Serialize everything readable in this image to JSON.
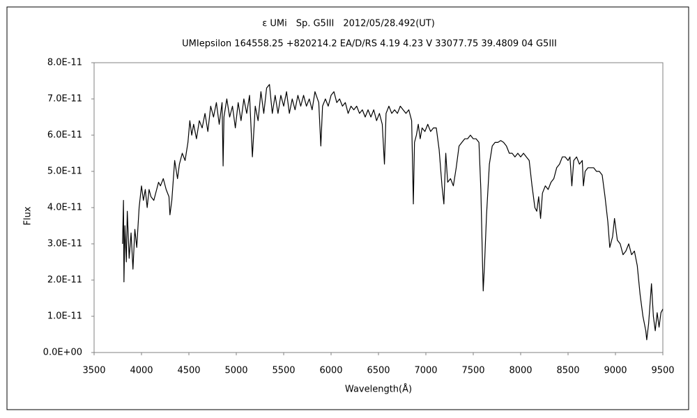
{
  "chart_data": {
    "type": "line",
    "title": "ε UMi　Sp. G5III　2012/05/28.492(UT)",
    "subtitle": "UMIepsilon 164558.25 +820214.2 EA/D/RS 4.19 4.23 V 33077.75 39.4809 04 G5III",
    "x_label": "Wavelength(Å)",
    "y_label": "Flux",
    "color": "#000000",
    "grid": false,
    "xlim": [
      3500,
      9500
    ],
    "xticks": [
      3500,
      4000,
      4500,
      5000,
      5500,
      6000,
      6500,
      7000,
      7500,
      8000,
      8500,
      9000,
      9500
    ],
    "ylim": [
      0,
      8e-11
    ],
    "yticks": [
      {
        "value": 0,
        "label": "0.0E+00"
      },
      {
        "value": 1e-11,
        "label": "1.0E-11"
      },
      {
        "value": 2e-11,
        "label": "2.0E-11"
      },
      {
        "value": 3e-11,
        "label": "3.0E-11"
      },
      {
        "value": 4e-11,
        "label": "4.0E-11"
      },
      {
        "value": 5e-11,
        "label": "5.0E-11"
      },
      {
        "value": 6e-11,
        "label": "6.0E-11"
      },
      {
        "value": 7e-11,
        "label": "7.0E-11"
      },
      {
        "value": 8e-11,
        "label": "8.0E-11"
      }
    ],
    "x": [
      3800,
      3810,
      3815,
      3825,
      3840,
      3850,
      3870,
      3890,
      3910,
      3930,
      3950,
      3975,
      4000,
      4020,
      4040,
      4060,
      4080,
      4100,
      4130,
      4160,
      4180,
      4200,
      4230,
      4260,
      4290,
      4300,
      4320,
      4350,
      4380,
      4400,
      4430,
      4460,
      4490,
      4510,
      4530,
      4550,
      4580,
      4610,
      4640,
      4670,
      4700,
      4730,
      4760,
      4790,
      4820,
      4850,
      4861,
      4870,
      4900,
      4930,
      4960,
      4990,
      5020,
      5050,
      5080,
      5110,
      5140,
      5170,
      5200,
      5230,
      5260,
      5290,
      5320,
      5350,
      5380,
      5410,
      5440,
      5470,
      5500,
      5530,
      5560,
      5590,
      5620,
      5650,
      5680,
      5710,
      5740,
      5770,
      5800,
      5830,
      5870,
      5892,
      5910,
      5940,
      5970,
      6000,
      6030,
      6060,
      6090,
      6120,
      6150,
      6180,
      6210,
      6240,
      6270,
      6300,
      6330,
      6360,
      6390,
      6420,
      6450,
      6480,
      6510,
      6540,
      6563,
      6580,
      6610,
      6640,
      6670,
      6700,
      6730,
      6760,
      6790,
      6820,
      6850,
      6868,
      6880,
      6900,
      6920,
      6940,
      6960,
      6990,
      7020,
      7050,
      7080,
      7110,
      7140,
      7170,
      7190,
      7210,
      7230,
      7260,
      7290,
      7320,
      7350,
      7380,
      7410,
      7440,
      7470,
      7500,
      7530,
      7560,
      7580,
      7600,
      7605,
      7620,
      7640,
      7670,
      7700,
      7730,
      7760,
      7790,
      7820,
      7850,
      7880,
      7910,
      7940,
      7970,
      8000,
      8030,
      8060,
      8090,
      8120,
      8150,
      8170,
      8190,
      8210,
      8230,
      8260,
      8290,
      8320,
      8350,
      8380,
      8410,
      8440,
      8470,
      8500,
      8520,
      8540,
      8560,
      8590,
      8620,
      8650,
      8662,
      8680,
      8710,
      8740,
      8770,
      8800,
      8830,
      8860,
      8890,
      8920,
      8940,
      8970,
      8990,
      9020,
      9050,
      9080,
      9110,
      9140,
      9170,
      9200,
      9230,
      9260,
      9290,
      9320,
      9330,
      9350,
      9380,
      9400,
      9420,
      9440,
      9460,
      9480,
      9500
    ],
    "values": [
      3e-11,
      4.2e-11,
      1.95e-11,
      3.5e-11,
      2.5e-11,
      3.9e-11,
      2.6e-11,
      3.3e-11,
      2.3e-11,
      3.4e-11,
      2.9e-11,
      4e-11,
      4.6e-11,
      4.2e-11,
      4.5e-11,
      4e-11,
      4.5e-11,
      4.3e-11,
      4.2e-11,
      4.5e-11,
      4.7e-11,
      4.6e-11,
      4.8e-11,
      4.5e-11,
      4.3e-11,
      3.8e-11,
      4.2e-11,
      5.3e-11,
      4.8e-11,
      5.2e-11,
      5.5e-11,
      5.3e-11,
      5.8e-11,
      6.4e-11,
      6e-11,
      6.3e-11,
      5.9e-11,
      6.4e-11,
      6.2e-11,
      6.6e-11,
      6.1e-11,
      6.8e-11,
      6.5e-11,
      6.9e-11,
      6.3e-11,
      6.9e-11,
      5.15e-11,
      6.5e-11,
      7e-11,
      6.5e-11,
      6.8e-11,
      6.2e-11,
      6.9e-11,
      6.4e-11,
      7e-11,
      6.6e-11,
      7.1e-11,
      5.4e-11,
      6.8e-11,
      6.4e-11,
      7.2e-11,
      6.6e-11,
      7.3e-11,
      7.4e-11,
      6.6e-11,
      7.1e-11,
      6.6e-11,
      7.1e-11,
      6.8e-11,
      7.2e-11,
      6.6e-11,
      7e-11,
      6.7e-11,
      7.1e-11,
      6.8e-11,
      7.1e-11,
      6.8e-11,
      7e-11,
      6.7e-11,
      7.2e-11,
      6.9e-11,
      5.7e-11,
      6.8e-11,
      7e-11,
      6.8e-11,
      7.1e-11,
      7.2e-11,
      6.9e-11,
      7e-11,
      6.8e-11,
      6.9e-11,
      6.6e-11,
      6.8e-11,
      6.7e-11,
      6.8e-11,
      6.6e-11,
      6.7e-11,
      6.5e-11,
      6.7e-11,
      6.5e-11,
      6.7e-11,
      6.4e-11,
      6.6e-11,
      6.3e-11,
      5.2e-11,
      6.6e-11,
      6.8e-11,
      6.6e-11,
      6.7e-11,
      6.6e-11,
      6.8e-11,
      6.7e-11,
      6.6e-11,
      6.7e-11,
      6.4e-11,
      4.1e-11,
      5.8e-11,
      6e-11,
      6.3e-11,
      5.9e-11,
      6.2e-11,
      6.1e-11,
      6.3e-11,
      6.1e-11,
      6.2e-11,
      6.2e-11,
      5.6e-11,
      4.6e-11,
      4.1e-11,
      5.5e-11,
      4.7e-11,
      4.8e-11,
      4.6e-11,
      5.1e-11,
      5.7e-11,
      5.8e-11,
      5.9e-11,
      5.9e-11,
      6e-11,
      5.9e-11,
      5.9e-11,
      5.8e-11,
      4.5e-11,
      2.2e-11,
      1.7e-11,
      2.5e-11,
      3.8e-11,
      5.2e-11,
      5.7e-11,
      5.8e-11,
      5.8e-11,
      5.85e-11,
      5.8e-11,
      5.7e-11,
      5.5e-11,
      5.5e-11,
      5.4e-11,
      5.5e-11,
      5.4e-11,
      5.5e-11,
      5.4e-11,
      5.3e-11,
      4.6e-11,
      4e-11,
      3.9e-11,
      4.3e-11,
      3.7e-11,
      4.4e-11,
      4.6e-11,
      4.5e-11,
      4.7e-11,
      4.8e-11,
      5.1e-11,
      5.2e-11,
      5.4e-11,
      5.4e-11,
      5.3e-11,
      5.4e-11,
      4.6e-11,
      5.3e-11,
      5.4e-11,
      5.2e-11,
      5.3e-11,
      4.6e-11,
      5e-11,
      5.1e-11,
      5.1e-11,
      5.1e-11,
      5e-11,
      5e-11,
      4.9e-11,
      4.3e-11,
      3.6e-11,
      2.9e-11,
      3.2e-11,
      3.7e-11,
      3.1e-11,
      3e-11,
      2.7e-11,
      2.8e-11,
      3e-11,
      2.7e-11,
      2.8e-11,
      2.4e-11,
      1.6e-11,
      1e-11,
      6e-12,
      3.5e-12,
      8e-12,
      1.9e-11,
      1e-11,
      6e-12,
      1.1e-11,
      7e-12,
      1.1e-11,
      1.2e-11
    ]
  }
}
